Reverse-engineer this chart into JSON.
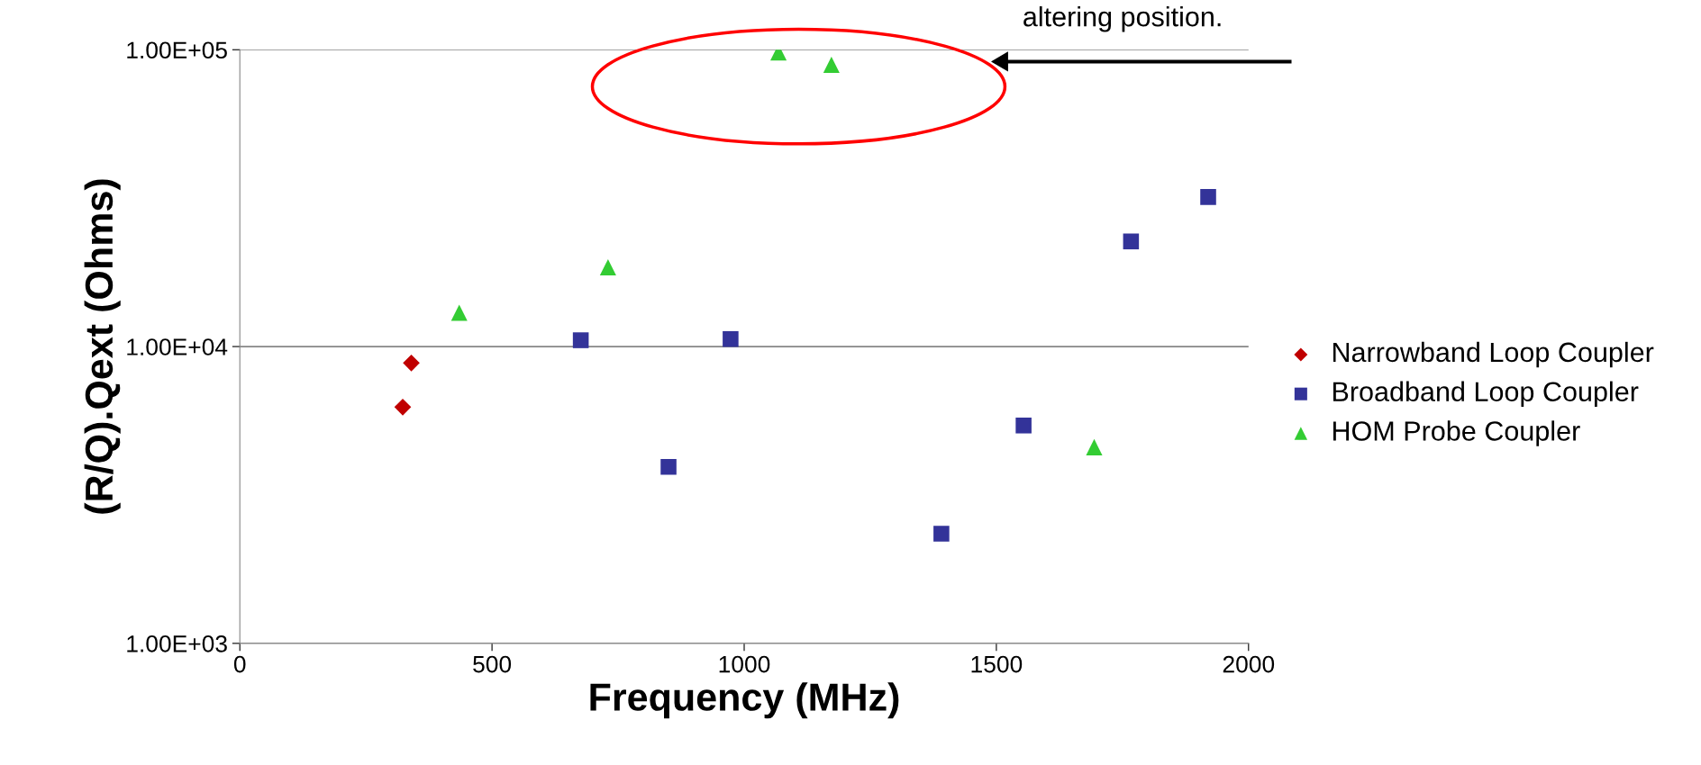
{
  "chart_data": {
    "type": "scatter",
    "xlabel": "Frequency (MHz)",
    "ylabel": "(R/Q).Qext (Ohms)",
    "log": "y",
    "xlim": [
      0,
      2000
    ],
    "xticks": [
      0,
      500,
      1000,
      1500,
      2000
    ],
    "ylim": [
      1000,
      100000
    ],
    "yticks": [
      {
        "value": 1000,
        "label": "1.00E+03"
      },
      {
        "value": 10000,
        "label": "1.00E+04"
      },
      {
        "value": 100000,
        "label": "1.00E+05"
      }
    ],
    "grid": "y",
    "legend": "right",
    "annotations": [
      "altering position."
    ],
    "series": [
      {
        "name": "Narrowband Loop Coupler",
        "color": "#c00000",
        "marker": "diamond",
        "x": [
          340,
          323
        ],
        "values": [
          8800,
          6250
        ]
      },
      {
        "name": "Broadband Loop Coupler",
        "color": "#333399",
        "marker": "square",
        "x": [
          676,
          850,
          973,
          1391,
          1554,
          1767,
          1920
        ],
        "values": [
          10500,
          3930,
          10600,
          2340,
          5420,
          22600,
          31900
        ]
      },
      {
        "name": "HOM Probe Coupler",
        "color": "#33cc33",
        "marker": "triangle",
        "x": [
          435,
          730,
          1068,
          1173,
          1694
        ],
        "values": [
          13000,
          18500,
          98000,
          89000,
          4580
        ]
      }
    ]
  }
}
